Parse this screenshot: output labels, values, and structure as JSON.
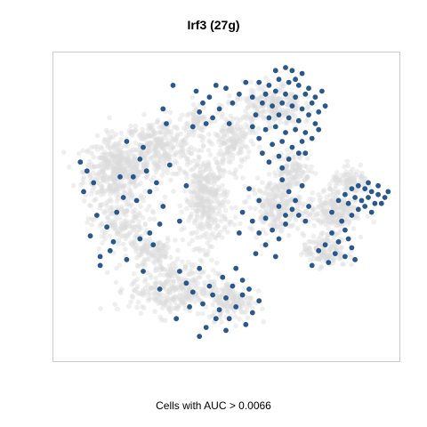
{
  "chart_data": {
    "type": "scatter",
    "title": "Irf3 (27g)",
    "xlabel": "Cells with AUC > 0.0066",
    "ylabel": "",
    "grid": false,
    "legend": "none",
    "axis_ticks": false,
    "xlim": [
      0,
      1
    ],
    "ylim": [
      0,
      1
    ],
    "colors": {
      "background_cells": "#dcdcdc",
      "active_cells": "#1d4f86",
      "frame": "#cccccc"
    },
    "series": [
      {
        "kind": "background",
        "clusters": [
          [
            0.17,
            0.62,
            0.09,
            0.1,
            420
          ],
          [
            0.3,
            0.7,
            0.1,
            0.09,
            300
          ],
          [
            0.18,
            0.44,
            0.08,
            0.08,
            160
          ],
          [
            0.44,
            0.52,
            0.06,
            0.14,
            360
          ],
          [
            0.52,
            0.72,
            0.05,
            0.09,
            160
          ],
          [
            0.34,
            0.22,
            0.12,
            0.08,
            320
          ],
          [
            0.52,
            0.18,
            0.06,
            0.06,
            150
          ],
          [
            0.65,
            0.5,
            0.07,
            0.08,
            220
          ],
          [
            0.82,
            0.48,
            0.07,
            0.06,
            200
          ],
          [
            0.8,
            0.35,
            0.06,
            0.05,
            140
          ],
          [
            0.7,
            0.62,
            0.05,
            0.06,
            120
          ],
          [
            0.64,
            0.84,
            0.08,
            0.07,
            220
          ],
          [
            0.88,
            0.58,
            0.06,
            0.04,
            100
          ],
          [
            0.28,
            0.34,
            0.06,
            0.05,
            110
          ],
          [
            0.41,
            0.8,
            0.04,
            0.05,
            60
          ]
        ]
      },
      {
        "kind": "active",
        "points": [
          [
            0.6,
            0.92
          ],
          [
            0.63,
            0.91
          ],
          [
            0.66,
            0.93
          ],
          [
            0.69,
            0.92
          ],
          [
            0.72,
            0.91
          ],
          [
            0.75,
            0.9
          ],
          [
            0.62,
            0.88
          ],
          [
            0.65,
            0.89
          ],
          [
            0.68,
            0.88
          ],
          [
            0.71,
            0.87
          ],
          [
            0.74,
            0.88
          ],
          [
            0.77,
            0.87
          ],
          [
            0.61,
            0.85
          ],
          [
            0.64,
            0.84
          ],
          [
            0.67,
            0.85
          ],
          [
            0.7,
            0.84
          ],
          [
            0.73,
            0.83
          ],
          [
            0.76,
            0.85
          ],
          [
            0.63,
            0.8
          ],
          [
            0.66,
            0.81
          ],
          [
            0.69,
            0.8
          ],
          [
            0.72,
            0.79
          ],
          [
            0.75,
            0.81
          ],
          [
            0.78,
            0.82
          ],
          [
            0.62,
            0.76
          ],
          [
            0.65,
            0.77
          ],
          [
            0.68,
            0.75
          ],
          [
            0.71,
            0.76
          ],
          [
            0.74,
            0.75
          ],
          [
            0.77,
            0.78
          ],
          [
            0.64,
            0.71
          ],
          [
            0.67,
            0.72
          ],
          [
            0.7,
            0.7
          ],
          [
            0.73,
            0.72
          ],
          [
            0.61,
            0.68
          ],
          [
            0.66,
            0.67
          ],
          [
            0.69,
            0.66
          ],
          [
            0.72,
            0.68
          ],
          [
            0.59,
            0.81
          ],
          [
            0.58,
            0.87
          ],
          [
            0.56,
            0.92
          ],
          [
            0.54,
            0.88
          ],
          [
            0.73,
            0.95
          ],
          [
            0.7,
            0.96
          ],
          [
            0.79,
            0.89
          ],
          [
            0.8,
            0.84
          ],
          [
            0.76,
            0.73
          ],
          [
            0.65,
            0.96
          ],
          [
            0.6,
            0.73
          ],
          [
            0.74,
            0.68
          ],
          [
            0.67,
            0.63
          ],
          [
            0.63,
            0.65
          ],
          [
            0.78,
            0.76
          ],
          [
            0.58,
            0.77
          ],
          [
            0.71,
            0.93
          ],
          [
            0.68,
            0.97
          ],
          [
            0.88,
            0.56
          ],
          [
            0.9,
            0.57
          ],
          [
            0.92,
            0.56
          ],
          [
            0.94,
            0.55
          ],
          [
            0.96,
            0.54
          ],
          [
            0.98,
            0.53
          ],
          [
            0.89,
            0.53
          ],
          [
            0.91,
            0.52
          ],
          [
            0.93,
            0.53
          ],
          [
            0.95,
            0.51
          ],
          [
            0.97,
            0.51
          ],
          [
            0.87,
            0.51
          ],
          [
            0.9,
            0.49
          ],
          [
            0.92,
            0.5
          ],
          [
            0.94,
            0.48
          ],
          [
            0.86,
            0.54
          ],
          [
            0.84,
            0.52
          ],
          [
            0.82,
            0.48
          ],
          [
            0.99,
            0.55
          ],
          [
            0.93,
            0.58
          ],
          [
            0.96,
            0.57
          ],
          [
            0.88,
            0.47
          ],
          [
            0.85,
            0.45
          ],
          [
            0.86,
            0.42
          ],
          [
            0.87,
            0.39
          ],
          [
            0.88,
            0.36
          ],
          [
            0.84,
            0.38
          ],
          [
            0.83,
            0.34
          ],
          [
            0.86,
            0.33
          ],
          [
            0.89,
            0.32
          ],
          [
            0.82,
            0.41
          ],
          [
            0.8,
            0.37
          ],
          [
            0.81,
            0.31
          ],
          [
            0.78,
            0.35
          ],
          [
            0.76,
            0.3
          ],
          [
            0.74,
            0.45
          ],
          [
            0.72,
            0.47
          ],
          [
            0.75,
            0.5
          ],
          [
            0.41,
            0.89
          ],
          [
            0.43,
            0.85
          ],
          [
            0.45,
            0.87
          ],
          [
            0.42,
            0.82
          ],
          [
            0.46,
            0.8
          ],
          [
            0.48,
            0.83
          ],
          [
            0.44,
            0.78
          ],
          [
            0.4,
            0.77
          ],
          [
            0.5,
            0.9
          ],
          [
            0.47,
            0.91
          ],
          [
            0.51,
            0.78
          ],
          [
            0.52,
            0.85
          ],
          [
            0.31,
            0.83
          ],
          [
            0.34,
            0.91
          ],
          [
            0.32,
            0.78
          ],
          [
            0.06,
            0.65
          ],
          [
            0.08,
            0.62
          ],
          [
            0.1,
            0.58
          ],
          [
            0.07,
            0.55
          ],
          [
            0.11,
            0.47
          ],
          [
            0.09,
            0.4
          ],
          [
            0.14,
            0.43
          ],
          [
            0.16,
            0.38
          ],
          [
            0.15,
            0.35
          ],
          [
            0.12,
            0.33
          ],
          [
            0.2,
            0.32
          ],
          [
            0.12,
            0.3
          ],
          [
            0.19,
            0.53
          ],
          [
            0.22,
            0.6
          ],
          [
            0.24,
            0.66
          ],
          [
            0.26,
            0.62
          ],
          [
            0.29,
            0.58
          ],
          [
            0.27,
            0.55
          ],
          [
            0.23,
            0.52
          ],
          [
            0.31,
            0.5
          ],
          [
            0.3,
            0.44
          ],
          [
            0.27,
            0.41
          ],
          [
            0.24,
            0.39
          ],
          [
            0.28,
            0.37
          ],
          [
            0.36,
            0.45
          ],
          [
            0.38,
            0.57
          ],
          [
            0.2,
            0.72
          ],
          [
            0.25,
            0.7
          ],
          [
            0.18,
            0.6
          ],
          [
            0.33,
            0.64
          ],
          [
            0.17,
            0.48
          ],
          [
            0.55,
            0.48
          ],
          [
            0.58,
            0.45
          ],
          [
            0.6,
            0.41
          ],
          [
            0.62,
            0.46
          ],
          [
            0.64,
            0.42
          ],
          [
            0.66,
            0.39
          ],
          [
            0.62,
            0.37
          ],
          [
            0.68,
            0.44
          ],
          [
            0.69,
            0.55
          ],
          [
            0.71,
            0.52
          ],
          [
            0.73,
            0.57
          ],
          [
            0.67,
            0.59
          ],
          [
            0.7,
            0.49
          ],
          [
            0.66,
            0.5
          ],
          [
            0.6,
            0.52
          ],
          [
            0.57,
            0.56
          ],
          [
            0.54,
            0.41
          ],
          [
            0.59,
            0.34
          ],
          [
            0.65,
            0.33
          ],
          [
            0.68,
            0.47
          ],
          [
            0.36,
            0.28
          ],
          [
            0.38,
            0.24
          ],
          [
            0.4,
            0.21
          ],
          [
            0.43,
            0.17
          ],
          [
            0.46,
            0.2
          ],
          [
            0.48,
            0.15
          ],
          [
            0.5,
            0.19
          ],
          [
            0.51,
            0.12
          ],
          [
            0.53,
            0.16
          ],
          [
            0.55,
            0.2
          ],
          [
            0.52,
            0.23
          ],
          [
            0.49,
            0.26
          ],
          [
            0.45,
            0.23
          ],
          [
            0.42,
            0.29
          ],
          [
            0.47,
            0.12
          ],
          [
            0.44,
            0.09
          ],
          [
            0.55,
            0.25
          ],
          [
            0.53,
            0.29
          ],
          [
            0.57,
            0.22
          ],
          [
            0.58,
            0.14
          ],
          [
            0.6,
            0.18
          ],
          [
            0.56,
            0.1
          ],
          [
            0.5,
            0.08
          ],
          [
            0.39,
            0.16
          ],
          [
            0.25,
            0.28
          ],
          [
            0.42,
            0.06
          ],
          [
            0.35,
            0.12
          ],
          [
            0.3,
            0.22
          ]
        ]
      }
    ]
  },
  "plot": {
    "title": "Irf3 (27g)",
    "caption": "Cells with AUC > 0.0066"
  }
}
